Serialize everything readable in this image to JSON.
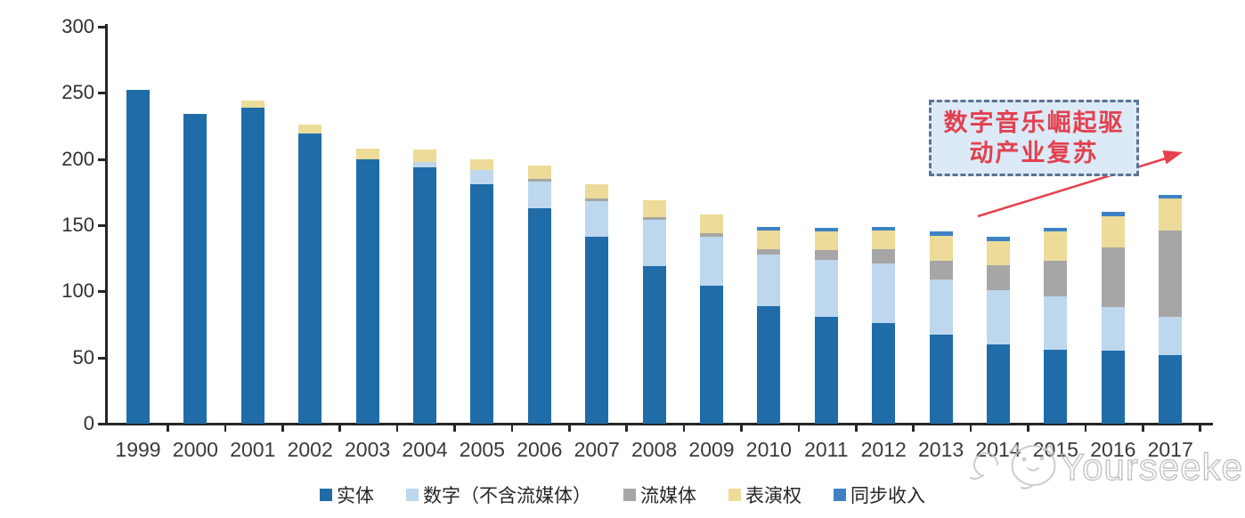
{
  "chart_data": {
    "type": "bar",
    "stacked": true,
    "title": "",
    "xlabel": "",
    "ylabel": "",
    "ylim": [
      0,
      300
    ],
    "yticks": [
      0,
      50,
      100,
      150,
      200,
      250,
      300
    ],
    "grid": false,
    "legend_position": "bottom",
    "categories": [
      "1999",
      "2000",
      "2001",
      "2002",
      "2003",
      "2004",
      "2005",
      "2006",
      "2007",
      "2008",
      "2009",
      "2010",
      "2011",
      "2012",
      "2013",
      "2014",
      "2015",
      "2016",
      "2017"
    ],
    "series": [
      {
        "key": "physical",
        "name": "实体",
        "color": "#1f6ca9",
        "values": [
          252,
          234,
          239,
          219,
          200,
          194,
          181,
          163,
          141,
          119,
          104,
          89,
          81,
          76,
          67,
          60,
          56,
          55,
          52
        ]
      },
      {
        "key": "digital-ex-streaming",
        "name": "数字（不含流媒体）",
        "color": "#bdd7ee",
        "values": [
          0,
          0,
          0,
          0,
          0,
          4,
          11,
          20,
          27,
          35,
          37,
          39,
          43,
          45,
          42,
          41,
          40,
          33,
          29
        ]
      },
      {
        "key": "streaming",
        "name": "流媒体",
        "color": "#a6a6a6",
        "values": [
          0,
          0,
          0,
          0,
          0,
          0,
          0,
          2,
          2,
          2,
          3,
          4,
          7,
          11,
          14,
          19,
          27,
          45,
          65
        ]
      },
      {
        "key": "performance-rights",
        "name": "表演权",
        "color": "#ecdb99",
        "values": [
          0,
          0,
          5,
          7,
          8,
          9,
          8,
          10,
          11,
          13,
          14,
          14,
          14,
          14,
          19,
          18,
          22,
          24,
          24
        ]
      },
      {
        "key": "sync-revenue",
        "name": "同步收入",
        "color": "#3e82c4",
        "values": [
          0,
          0,
          0,
          0,
          0,
          0,
          0,
          0,
          0,
          0,
          0,
          3,
          3,
          3,
          3,
          3,
          3,
          3,
          3
        ]
      }
    ],
    "totals": [
      252,
      234,
      244,
      226,
      208,
      207,
      200,
      195,
      181,
      169,
      158,
      149,
      148,
      149,
      145,
      141,
      148,
      160,
      173
    ]
  },
  "annotation": {
    "line1": "数字音乐崛起驱",
    "line2": "动产业复苏",
    "text_color": "#e2404e",
    "box_fill": "#dce9f7",
    "border_color": "#5c7392",
    "arrow_color": "#e8404e"
  },
  "watermark": {
    "text": "Yourseeker",
    "color": "#bdbdbd",
    "logo": "cat-face-icon"
  },
  "colors": {
    "axis": "#262626",
    "y_tick_label": "#303030",
    "x_tick_label": "#3a3a3a",
    "background": "#ffffff"
  }
}
